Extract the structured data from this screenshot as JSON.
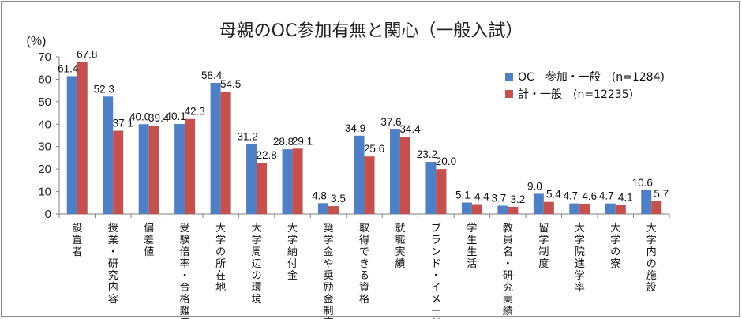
{
  "chart_data": {
    "type": "bar",
    "title": "母親のOC参加有無と関心（一般入試）",
    "ylabel": "(%)",
    "ylim": [
      0,
      70
    ],
    "yticks": [
      0,
      10,
      20,
      30,
      40,
      50,
      60,
      70
    ],
    "grid": false,
    "legend_position": "top-right",
    "categories": [
      "設置者",
      "授業・研究内容",
      "偏差値",
      "受験倍率・合格難度",
      "大学の所在地",
      "大学周辺の環境",
      "大学納付金",
      "奨学金や奨励金制度",
      "取得できる資格",
      "就職実績",
      "ブランド・イメージ",
      "学生生活",
      "教員名・研究実績",
      "留学制度",
      "大学院進学率",
      "大学の寮",
      "大学内の施設"
    ],
    "series": [
      {
        "name": "OC　参加・一般　(n=1284)",
        "color": "#4f7fc4",
        "values": [
          61.4,
          52.3,
          40.0,
          40.1,
          58.4,
          31.2,
          28.8,
          4.8,
          34.9,
          37.6,
          23.2,
          5.1,
          3.7,
          9.0,
          4.7,
          4.7,
          10.6
        ]
      },
      {
        "name": "計・一般　(n=12235)",
        "color": "#c4514e",
        "values": [
          67.8,
          37.1,
          39.4,
          42.3,
          54.5,
          22.8,
          29.1,
          3.5,
          25.6,
          34.4,
          20.0,
          4.4,
          3.2,
          5.4,
          4.6,
          4.1,
          5.7
        ]
      }
    ]
  }
}
